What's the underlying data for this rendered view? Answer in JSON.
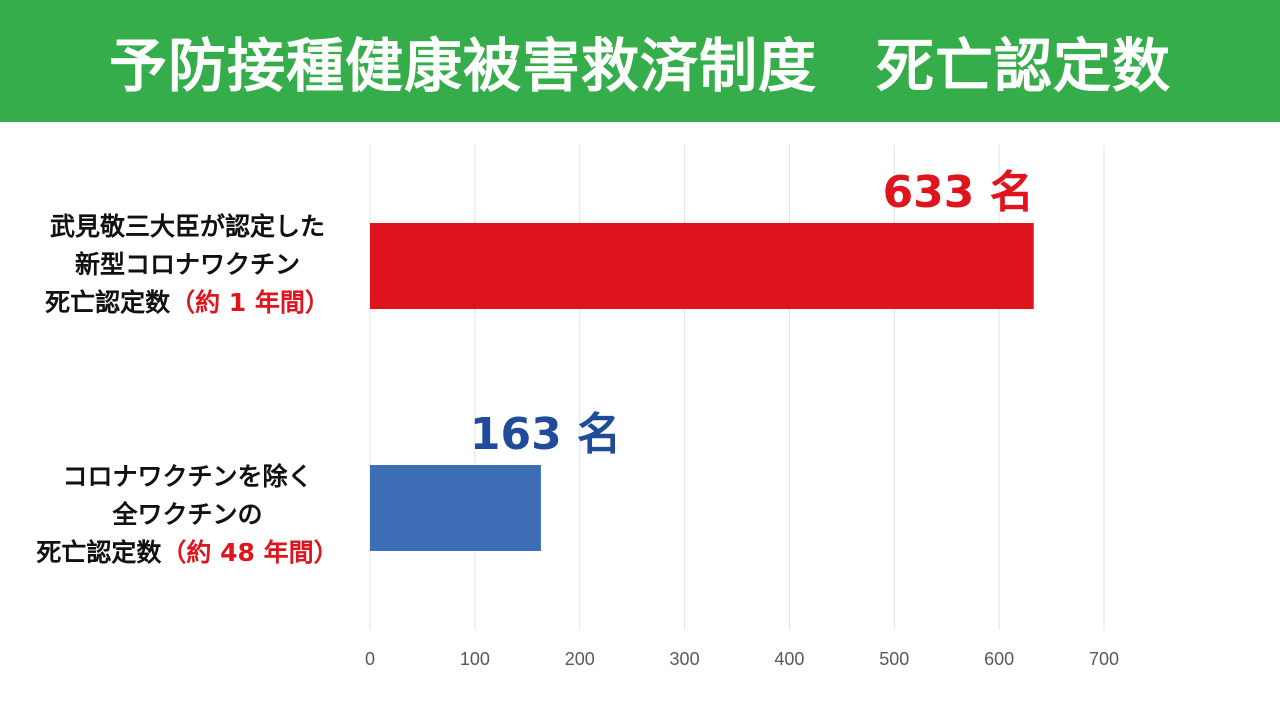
{
  "header": {
    "title": "予防接種健康被害救済制度　死亡認定数",
    "background": "#35ad4a"
  },
  "chart_data": {
    "type": "bar",
    "orientation": "horizontal",
    "title": "",
    "xlabel": "",
    "ylabel": "",
    "xlim": [
      0,
      700
    ],
    "xticks": [
      0,
      100,
      200,
      300,
      400,
      500,
      600,
      700
    ],
    "grid": true,
    "categories": [
      {
        "lines": [
          "武見敬三大臣が認定した",
          "新型コロナワクチン",
          "死亡認定数"
        ],
        "note": "（約 1 年間）"
      },
      {
        "lines": [
          "コロナワクチンを除く",
          "全ワクチンの",
          "死亡認定数"
        ],
        "note": "（約 48 年間）"
      }
    ],
    "values": [
      633,
      163
    ],
    "value_labels": [
      "633 名",
      "163 名"
    ],
    "colors": [
      "#e0141c",
      "#3d6eb5"
    ],
    "label_colors": [
      "#e0141c",
      "#1f4b99"
    ]
  }
}
